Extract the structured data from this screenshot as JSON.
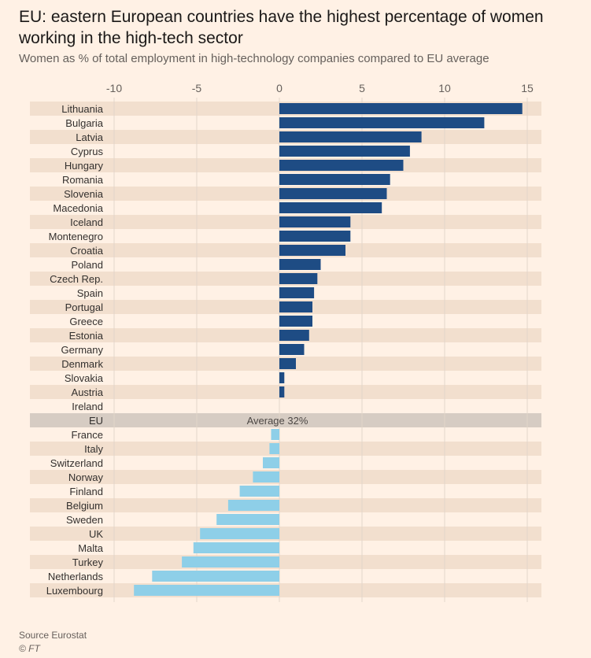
{
  "title": "EU: eastern European countries have the highest percentage of  women working in the high-tech sector",
  "subtitle": "Women as % of total employment in high-technology companies compared to EU average",
  "colors": {
    "background": "#FFF1E5",
    "band": "#F2DFCE",
    "average_band": "#D6CCC3",
    "above_average": "#1E4C84",
    "below_average": "#8ECFE8",
    "gridline": "#E3D6CA"
  },
  "chart_data": {
    "type": "bar",
    "orientation": "horizontal",
    "xlim": [
      -10,
      15
    ],
    "xticks": [
      -10,
      -5,
      0,
      5,
      10,
      15
    ],
    "grid": true,
    "categories": [
      "Lithuania",
      "Bulgaria",
      "Latvia",
      "Cyprus",
      "Hungary",
      "Romania",
      "Slovenia",
      "Macedonia",
      "Iceland",
      "Montenegro",
      "Croatia",
      "Poland",
      "Czech Rep.",
      "Spain",
      "Portugal",
      "Greece",
      "Estonia",
      "Germany",
      "Denmark",
      "Slovakia",
      "Austria",
      "Ireland",
      "EU",
      "France",
      "Italy",
      "Switzerland",
      "Norway",
      "Finland",
      "Belgium",
      "Sweden",
      "UK",
      "Malta",
      "Turkey",
      "Netherlands",
      "Luxembourg"
    ],
    "values": [
      14.7,
      12.4,
      8.6,
      7.9,
      7.5,
      6.7,
      6.5,
      6.2,
      4.3,
      4.3,
      4.0,
      2.5,
      2.3,
      2.1,
      2.0,
      2.0,
      1.8,
      1.5,
      1.0,
      0.3,
      0.3,
      0.0,
      null,
      -0.5,
      -0.6,
      -1.0,
      -1.6,
      -2.4,
      -3.1,
      -3.8,
      -4.8,
      -5.2,
      -5.9,
      -7.7,
      -8.8
    ],
    "average_category": "EU",
    "average_label": "Average 32%"
  },
  "footer": {
    "source": "Source Eurostat",
    "credit": "© FT"
  }
}
